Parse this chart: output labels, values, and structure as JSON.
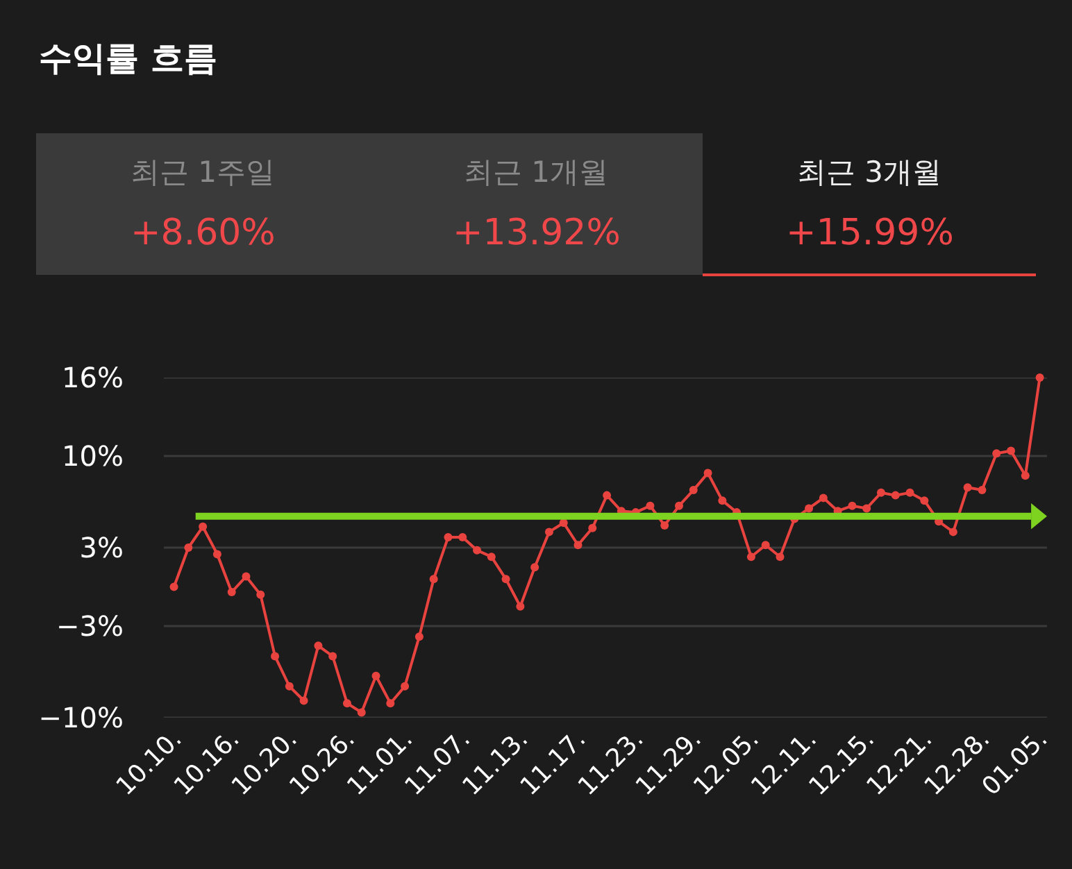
{
  "chart_data": {
    "type": "line",
    "title": "수익률 흐름",
    "annotations": [
      "최근 1주일",
      "+8.60%",
      "최근 1개월",
      "+13.92%",
      "최근 3개월",
      "+15.99%"
    ],
    "categories": [
      "10.10.",
      null,
      null,
      null,
      "10.16.",
      null,
      null,
      null,
      "10.20.",
      null,
      null,
      null,
      "10.26.",
      null,
      null,
      null,
      "11.01.",
      null,
      null,
      null,
      "11.07.",
      null,
      null,
      null,
      "11.13.",
      null,
      null,
      null,
      "11.17.",
      null,
      null,
      null,
      "11.23.",
      null,
      null,
      null,
      "11.29.",
      null,
      null,
      null,
      "12.05.",
      null,
      null,
      null,
      "12.11.",
      null,
      null,
      null,
      "12.15.",
      null,
      null,
      null,
      "12.21.",
      null,
      null,
      null,
      "12.28.",
      null,
      null,
      null,
      "01.05."
    ],
    "series": [
      {
        "color": "#e8433f",
        "values": [
          0.0,
          3.0,
          4.6,
          2.5,
          -0.4,
          0.8,
          -0.6,
          -5.3,
          -7.6,
          -8.7,
          -4.5,
          -5.3,
          -8.9,
          -9.6,
          -6.8,
          -8.9,
          -7.6,
          -3.8,
          0.6,
          3.8,
          3.8,
          2.8,
          2.3,
          0.6,
          -1.5,
          1.5,
          4.2,
          4.9,
          3.2,
          4.5,
          7.0,
          5.8,
          5.7,
          6.2,
          4.7,
          6.2,
          7.4,
          8.7,
          6.6,
          5.7,
          2.3,
          3.2,
          2.3,
          5.2,
          6.0,
          6.8,
          5.8,
          6.2,
          6.0,
          7.2,
          7.0,
          7.2,
          6.6,
          5.0,
          4.2,
          7.6,
          7.4,
          10.2,
          10.4,
          8.5,
          16.0
        ]
      }
    ],
    "ylim": [
      -10,
      16
    ],
    "yticks": [
      {
        "value": 16,
        "label": "16%"
      },
      {
        "value": 10,
        "label": "10%"
      },
      {
        "value": 3,
        "label": "3%"
      },
      {
        "value": -3,
        "label": "−3%"
      },
      {
        "value": -10,
        "label": "−10%"
      }
    ],
    "ref_lines": [
      {
        "axis": "y",
        "value": 5.4,
        "color": "#7ed321"
      }
    ],
    "grid": "y",
    "marker": "circle",
    "line_style": "solid"
  }
}
